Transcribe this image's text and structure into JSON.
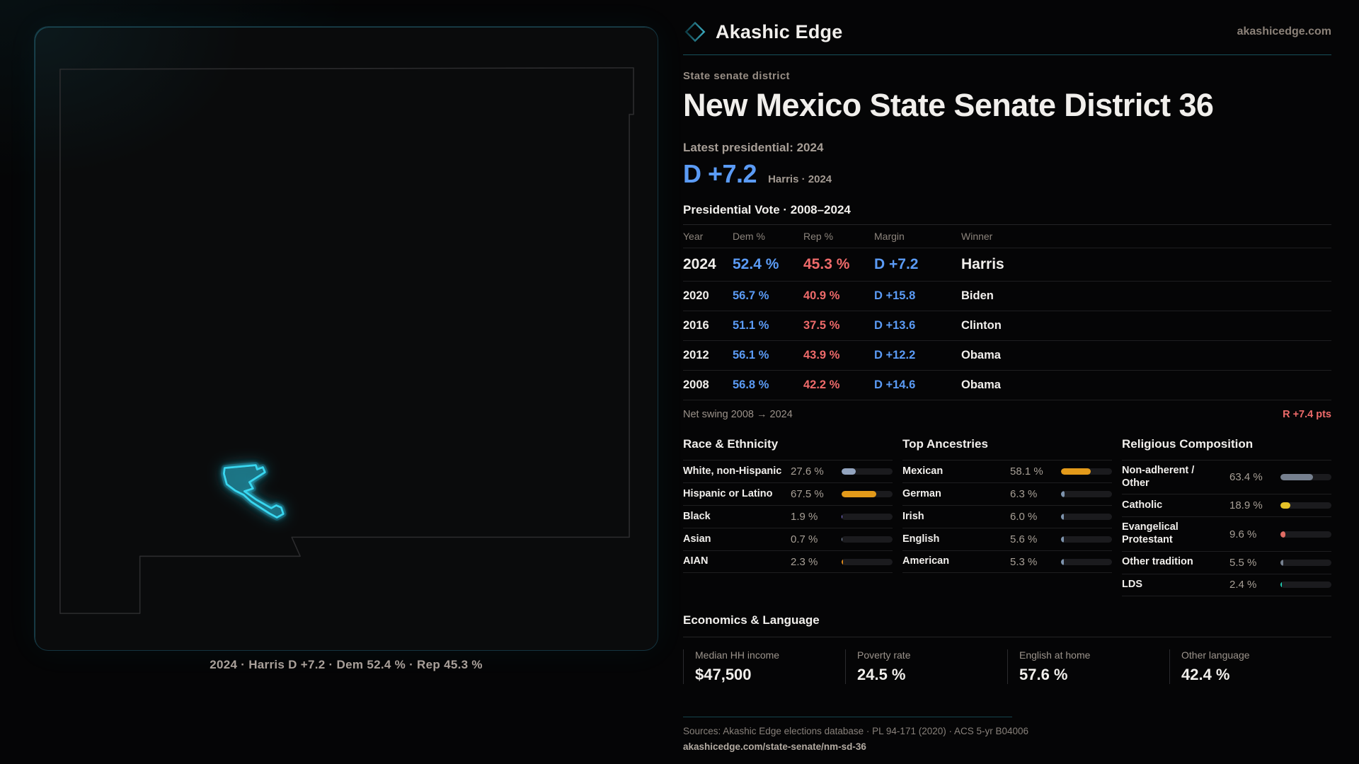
{
  "brand": {
    "name": "Akashic Edge",
    "domain": "akashicedge.com"
  },
  "page": {
    "kicker": "State senate district",
    "title": "New Mexico State Senate District 36",
    "latest_label": "Latest presidential: 2024",
    "margin_value": "D +7.2",
    "margin_detail": "Harris · 2024"
  },
  "map": {
    "caption": "2024 · Harris D +7.2 · Dem 52.4 % · Rep 45.3 %"
  },
  "vote_table": {
    "title": "Presidential Vote · 2008–2024",
    "columns": {
      "year": "Year",
      "dem": "Dem %",
      "rep": "Rep %",
      "margin": "Margin",
      "winner": "Winner"
    },
    "rows": [
      {
        "year": "2024",
        "dem": "52.4 %",
        "rep": "45.3 %",
        "margin": "D +7.2",
        "winner": "Harris"
      },
      {
        "year": "2020",
        "dem": "56.7 %",
        "rep": "40.9 %",
        "margin": "D +15.8",
        "winner": "Biden"
      },
      {
        "year": "2016",
        "dem": "51.1 %",
        "rep": "37.5 %",
        "margin": "D +13.6",
        "winner": "Clinton"
      },
      {
        "year": "2012",
        "dem": "56.1 %",
        "rep": "43.9 %",
        "margin": "D +12.2",
        "winner": "Obama"
      },
      {
        "year": "2008",
        "dem": "56.8 %",
        "rep": "42.2 %",
        "margin": "D +14.6",
        "winner": "Obama"
      }
    ],
    "net_swing_label": "Net swing 2008 → 2024",
    "net_swing_value": "R +7.4 pts"
  },
  "demographics": {
    "sections": [
      {
        "title": "Race & Ethnicity",
        "rows": [
          {
            "label": "White, non-Hispanic",
            "value": "27.6 %",
            "pct": 27.6,
            "color": "#93a4bf"
          },
          {
            "label": "Hispanic or Latino",
            "value": "67.5 %",
            "pct": 67.5,
            "color": "#e39a1a"
          },
          {
            "label": "Black",
            "value": "1.9 %",
            "pct": 1.9,
            "color": "#8b7cf0"
          },
          {
            "label": "Asian",
            "value": "0.7 %",
            "pct": 0.7,
            "color": "#93a4bf"
          },
          {
            "label": "AIAN",
            "value": "2.3 %",
            "pct": 2.3,
            "color": "#e08a1a"
          }
        ]
      },
      {
        "title": "Top Ancestries",
        "rows": [
          {
            "label": "Mexican",
            "value": "58.1 %",
            "pct": 58.1,
            "color": "#e39a1a"
          },
          {
            "label": "German",
            "value": "6.3 %",
            "pct": 6.3,
            "color": "#7d93ad"
          },
          {
            "label": "Irish",
            "value": "6.0 %",
            "pct": 6.0,
            "color": "#7d93ad"
          },
          {
            "label": "English",
            "value": "5.6 %",
            "pct": 5.6,
            "color": "#7d93ad"
          },
          {
            "label": "American",
            "value": "5.3 %",
            "pct": 5.3,
            "color": "#7d93ad"
          }
        ]
      },
      {
        "title": "Religious Composition",
        "rows": [
          {
            "label": "Non-adherent / Other",
            "value": "63.4 %",
            "pct": 63.4,
            "color": "#76808f"
          },
          {
            "label": "Catholic",
            "value": "18.9 %",
            "pct": 18.9,
            "color": "#e6c228"
          },
          {
            "label": "Evangelical Protestant",
            "value": "9.6 %",
            "pct": 9.6,
            "color": "#e06c64"
          },
          {
            "label": "Other tradition",
            "value": "5.5 %",
            "pct": 5.5,
            "color": "#76808f"
          },
          {
            "label": "LDS",
            "value": "2.4 %",
            "pct": 2.4,
            "color": "#1fd0b4"
          }
        ]
      }
    ]
  },
  "economics": {
    "title": "Economics & Language",
    "stats": [
      {
        "label": "Median HH income",
        "value": "$47,500"
      },
      {
        "label": "Poverty rate",
        "value": "24.5 %"
      },
      {
        "label": "English at home",
        "value": "57.6 %"
      },
      {
        "label": "Other language",
        "value": "42.4 %"
      }
    ]
  },
  "footer": {
    "sources": "Sources: Akashic Edge elections database · PL 94-171 (2020) · ACS 5-yr B04006",
    "permalink": "akashicedge.com/state-senate/nm-sd-36"
  },
  "colors": {
    "dem_blue": "#5b9bf5",
    "rep_red": "#ee6a6a",
    "accent_teal": "#38d7f0",
    "bar_orange": "#e39a1a",
    "bar_yellow": "#e6c228",
    "bar_slate": "#76808f"
  },
  "chart_data": [
    {
      "type": "table",
      "title": "Presidential Vote · 2008–2024",
      "columns": [
        "Year",
        "Dem %",
        "Rep %",
        "Margin",
        "Winner"
      ],
      "rows": [
        [
          "2024",
          52.4,
          45.3,
          "D +7.2",
          "Harris"
        ],
        [
          "2020",
          56.7,
          40.9,
          "D +15.8",
          "Biden"
        ],
        [
          "2016",
          51.1,
          37.5,
          "D +13.6",
          "Clinton"
        ],
        [
          "2012",
          56.1,
          43.9,
          "D +12.2",
          "Obama"
        ],
        [
          "2008",
          56.8,
          42.2,
          "D +14.6",
          "Obama"
        ]
      ],
      "annotations": [
        "Net swing 2008 → 2024: R +7.4 pts"
      ]
    },
    {
      "type": "bar",
      "title": "Race & Ethnicity",
      "categories": [
        "White, non-Hispanic",
        "Hispanic or Latino",
        "Black",
        "Asian",
        "AIAN"
      ],
      "values": [
        27.6,
        67.5,
        1.9,
        0.7,
        2.3
      ],
      "xlim": [
        0,
        100
      ]
    },
    {
      "type": "bar",
      "title": "Top Ancestries",
      "categories": [
        "Mexican",
        "German",
        "Irish",
        "English",
        "American"
      ],
      "values": [
        58.1,
        6.3,
        6.0,
        5.6,
        5.3
      ],
      "xlim": [
        0,
        100
      ]
    },
    {
      "type": "bar",
      "title": "Religious Composition",
      "categories": [
        "Non-adherent / Other",
        "Catholic",
        "Evangelical Protestant",
        "Other tradition",
        "LDS"
      ],
      "values": [
        63.4,
        18.9,
        9.6,
        5.5,
        2.4
      ],
      "xlim": [
        0,
        100
      ]
    },
    {
      "type": "table",
      "title": "Economics & Language",
      "columns": [
        "Median HH income",
        "Poverty rate",
        "English at home",
        "Other language"
      ],
      "rows": [
        [
          "$47,500",
          "24.5 %",
          "57.6 %",
          "42.4 %"
        ]
      ]
    }
  ]
}
